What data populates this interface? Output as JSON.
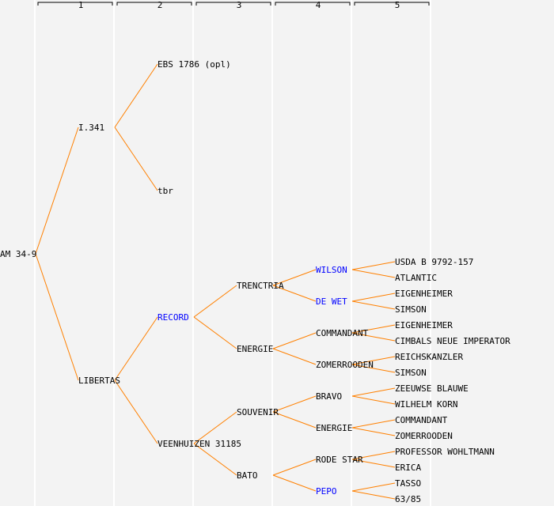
{
  "columns": [
    "1",
    "2",
    "3",
    "4",
    "5"
  ],
  "colors": {
    "line": "#ff8000",
    "normal": "#000000",
    "highlight": "#0000ff",
    "background": "#f3f3f3",
    "separator": "#ffffff"
  },
  "tree": {
    "name": "AM 34-9",
    "children": [
      {
        "name": "I.341",
        "children": [
          {
            "name": "EBS 1786 (opl)"
          },
          {
            "name": "tbr"
          }
        ]
      },
      {
        "name": "LIBERTAS",
        "children": [
          {
            "name": "RECORD",
            "highlight": true,
            "children": [
              {
                "name": "TRENCTRIA",
                "children": [
                  {
                    "name": "WILSON",
                    "highlight": true,
                    "children": [
                      {
                        "name": "USDA B 9792-157"
                      },
                      {
                        "name": "ATLANTIC"
                      }
                    ]
                  },
                  {
                    "name": "DE WET",
                    "highlight": true,
                    "children": [
                      {
                        "name": "EIGENHEIMER"
                      },
                      {
                        "name": "SIMSON"
                      }
                    ]
                  }
                ]
              },
              {
                "name": "ENERGIE",
                "children": [
                  {
                    "name": "COMMANDANT",
                    "children": [
                      {
                        "name": "EIGENHEIMER"
                      },
                      {
                        "name": "CIMBALS NEUE IMPERATOR"
                      }
                    ]
                  },
                  {
                    "name": "ZOMERROODEN",
                    "children": [
                      {
                        "name": "REICHSKANZLER"
                      },
                      {
                        "name": "SIMSON"
                      }
                    ]
                  }
                ]
              }
            ]
          },
          {
            "name": "VEENHUIZEN 31185",
            "children": [
              {
                "name": "SOUVENIR",
                "children": [
                  {
                    "name": "BRAVO",
                    "children": [
                      {
                        "name": "ZEEUWSE BLAUWE"
                      },
                      {
                        "name": "WILHELM KORN"
                      }
                    ]
                  },
                  {
                    "name": "ENERGIE",
                    "children": [
                      {
                        "name": "COMMANDANT"
                      },
                      {
                        "name": "ZOMERROODEN"
                      }
                    ]
                  }
                ]
              },
              {
                "name": "BATO",
                "children": [
                  {
                    "name": "RODE STAR",
                    "children": [
                      {
                        "name": "PROFESSOR WOHLTMANN"
                      },
                      {
                        "name": "ERICA"
                      }
                    ]
                  },
                  {
                    "name": "PEPO",
                    "highlight": true,
                    "children": [
                      {
                        "name": "TASSO"
                      },
                      {
                        "name": "63/85"
                      }
                    ]
                  }
                ]
              }
            ]
          }
        ]
      }
    ]
  }
}
